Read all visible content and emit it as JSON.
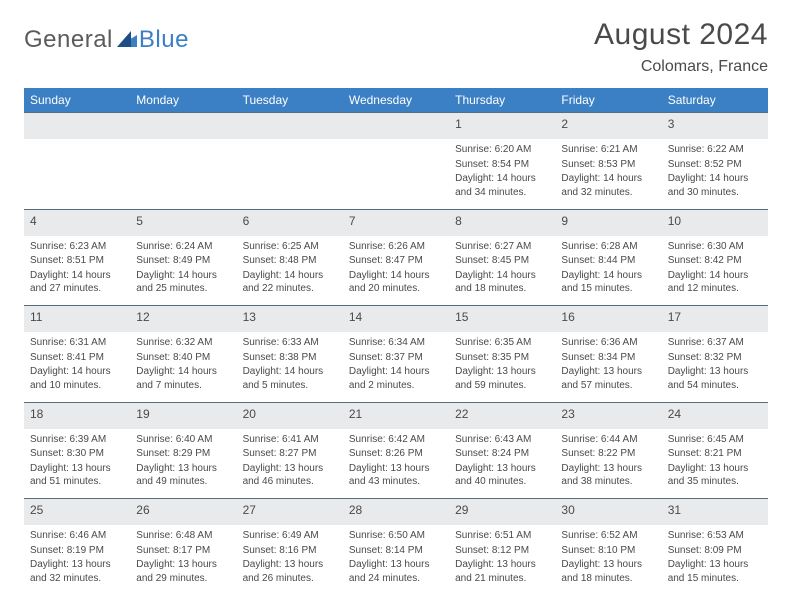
{
  "logo": {
    "general": "General",
    "blue": "Blue"
  },
  "title": "August 2024",
  "location": "Colomars, France",
  "colors": {
    "header_bg": "#3b7fc4",
    "header_text": "#ffffff",
    "daynum_bg": "#e9eaec",
    "border": "#5a6b7a",
    "text": "#4a4a4a",
    "logo_gray": "#5b5b5b",
    "logo_blue": "#3b7fc4",
    "page_bg": "#ffffff"
  },
  "typography": {
    "title_fontsize": 30,
    "location_fontsize": 16,
    "logo_fontsize": 24,
    "header_fontsize": 12,
    "daynum_fontsize": 12,
    "cell_fontsize": 10
  },
  "weekdays": [
    "Sunday",
    "Monday",
    "Tuesday",
    "Wednesday",
    "Thursday",
    "Friday",
    "Saturday"
  ],
  "weeks": [
    [
      null,
      null,
      null,
      null,
      {
        "n": "1",
        "sr": "Sunrise: 6:20 AM",
        "ss": "Sunset: 8:54 PM",
        "dl": "Daylight: 14 hours and 34 minutes."
      },
      {
        "n": "2",
        "sr": "Sunrise: 6:21 AM",
        "ss": "Sunset: 8:53 PM",
        "dl": "Daylight: 14 hours and 32 minutes."
      },
      {
        "n": "3",
        "sr": "Sunrise: 6:22 AM",
        "ss": "Sunset: 8:52 PM",
        "dl": "Daylight: 14 hours and 30 minutes."
      }
    ],
    [
      {
        "n": "4",
        "sr": "Sunrise: 6:23 AM",
        "ss": "Sunset: 8:51 PM",
        "dl": "Daylight: 14 hours and 27 minutes."
      },
      {
        "n": "5",
        "sr": "Sunrise: 6:24 AM",
        "ss": "Sunset: 8:49 PM",
        "dl": "Daylight: 14 hours and 25 minutes."
      },
      {
        "n": "6",
        "sr": "Sunrise: 6:25 AM",
        "ss": "Sunset: 8:48 PM",
        "dl": "Daylight: 14 hours and 22 minutes."
      },
      {
        "n": "7",
        "sr": "Sunrise: 6:26 AM",
        "ss": "Sunset: 8:47 PM",
        "dl": "Daylight: 14 hours and 20 minutes."
      },
      {
        "n": "8",
        "sr": "Sunrise: 6:27 AM",
        "ss": "Sunset: 8:45 PM",
        "dl": "Daylight: 14 hours and 18 minutes."
      },
      {
        "n": "9",
        "sr": "Sunrise: 6:28 AM",
        "ss": "Sunset: 8:44 PM",
        "dl": "Daylight: 14 hours and 15 minutes."
      },
      {
        "n": "10",
        "sr": "Sunrise: 6:30 AM",
        "ss": "Sunset: 8:42 PM",
        "dl": "Daylight: 14 hours and 12 minutes."
      }
    ],
    [
      {
        "n": "11",
        "sr": "Sunrise: 6:31 AM",
        "ss": "Sunset: 8:41 PM",
        "dl": "Daylight: 14 hours and 10 minutes."
      },
      {
        "n": "12",
        "sr": "Sunrise: 6:32 AM",
        "ss": "Sunset: 8:40 PM",
        "dl": "Daylight: 14 hours and 7 minutes."
      },
      {
        "n": "13",
        "sr": "Sunrise: 6:33 AM",
        "ss": "Sunset: 8:38 PM",
        "dl": "Daylight: 14 hours and 5 minutes."
      },
      {
        "n": "14",
        "sr": "Sunrise: 6:34 AM",
        "ss": "Sunset: 8:37 PM",
        "dl": "Daylight: 14 hours and 2 minutes."
      },
      {
        "n": "15",
        "sr": "Sunrise: 6:35 AM",
        "ss": "Sunset: 8:35 PM",
        "dl": "Daylight: 13 hours and 59 minutes."
      },
      {
        "n": "16",
        "sr": "Sunrise: 6:36 AM",
        "ss": "Sunset: 8:34 PM",
        "dl": "Daylight: 13 hours and 57 minutes."
      },
      {
        "n": "17",
        "sr": "Sunrise: 6:37 AM",
        "ss": "Sunset: 8:32 PM",
        "dl": "Daylight: 13 hours and 54 minutes."
      }
    ],
    [
      {
        "n": "18",
        "sr": "Sunrise: 6:39 AM",
        "ss": "Sunset: 8:30 PM",
        "dl": "Daylight: 13 hours and 51 minutes."
      },
      {
        "n": "19",
        "sr": "Sunrise: 6:40 AM",
        "ss": "Sunset: 8:29 PM",
        "dl": "Daylight: 13 hours and 49 minutes."
      },
      {
        "n": "20",
        "sr": "Sunrise: 6:41 AM",
        "ss": "Sunset: 8:27 PM",
        "dl": "Daylight: 13 hours and 46 minutes."
      },
      {
        "n": "21",
        "sr": "Sunrise: 6:42 AM",
        "ss": "Sunset: 8:26 PM",
        "dl": "Daylight: 13 hours and 43 minutes."
      },
      {
        "n": "22",
        "sr": "Sunrise: 6:43 AM",
        "ss": "Sunset: 8:24 PM",
        "dl": "Daylight: 13 hours and 40 minutes."
      },
      {
        "n": "23",
        "sr": "Sunrise: 6:44 AM",
        "ss": "Sunset: 8:22 PM",
        "dl": "Daylight: 13 hours and 38 minutes."
      },
      {
        "n": "24",
        "sr": "Sunrise: 6:45 AM",
        "ss": "Sunset: 8:21 PM",
        "dl": "Daylight: 13 hours and 35 minutes."
      }
    ],
    [
      {
        "n": "25",
        "sr": "Sunrise: 6:46 AM",
        "ss": "Sunset: 8:19 PM",
        "dl": "Daylight: 13 hours and 32 minutes."
      },
      {
        "n": "26",
        "sr": "Sunrise: 6:48 AM",
        "ss": "Sunset: 8:17 PM",
        "dl": "Daylight: 13 hours and 29 minutes."
      },
      {
        "n": "27",
        "sr": "Sunrise: 6:49 AM",
        "ss": "Sunset: 8:16 PM",
        "dl": "Daylight: 13 hours and 26 minutes."
      },
      {
        "n": "28",
        "sr": "Sunrise: 6:50 AM",
        "ss": "Sunset: 8:14 PM",
        "dl": "Daylight: 13 hours and 24 minutes."
      },
      {
        "n": "29",
        "sr": "Sunrise: 6:51 AM",
        "ss": "Sunset: 8:12 PM",
        "dl": "Daylight: 13 hours and 21 minutes."
      },
      {
        "n": "30",
        "sr": "Sunrise: 6:52 AM",
        "ss": "Sunset: 8:10 PM",
        "dl": "Daylight: 13 hours and 18 minutes."
      },
      {
        "n": "31",
        "sr": "Sunrise: 6:53 AM",
        "ss": "Sunset: 8:09 PM",
        "dl": "Daylight: 13 hours and 15 minutes."
      }
    ]
  ]
}
